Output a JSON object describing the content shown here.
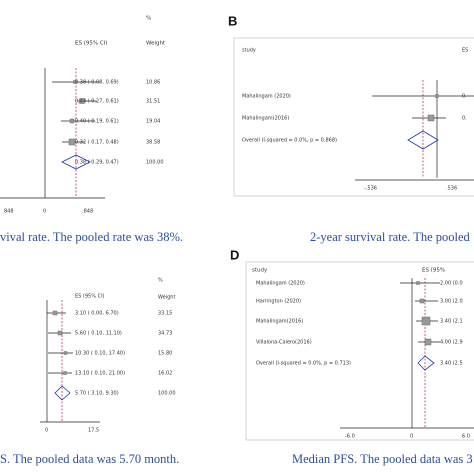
{
  "panel_a": {
    "pct": "%",
    "es_header": "ES (95% CI)",
    "weight_header": "Weight",
    "rows": [
      [
        "0.38 ( 0.08, 0.69)",
        "10.86"
      ],
      [
        "0.44 ( 0.27, 0.61)",
        "31.51"
      ],
      [
        "0.40 ( 0.19, 0.61)",
        "19.04"
      ],
      [
        "0.32 ( 0.17, 0.48)",
        "38.58"
      ],
      [
        "0.38 ( 0.29, 0.47)",
        "100.00"
      ]
    ],
    "axis": [
      "848",
      "0",
      ".848"
    ],
    "caption": "vival rate. The pooled rate was 38%."
  },
  "panel_b": {
    "label": "B",
    "study_header": "study",
    "es_header": "ES",
    "rows": [
      [
        "Mahalingam  (2020)",
        "0."
      ],
      [
        "Mahalingam(2016)",
        "0."
      ],
      [
        "Overall  (I-squared = 0.0%, p = 0.868)",
        ""
      ]
    ],
    "axis": [
      "-.536",
      ".536"
    ],
    "caption": "2-year survival rate. The pooled"
  },
  "panel_c": {
    "pct": "%",
    "es_header": "ES (95% CI)",
    "weight_header": "Weight",
    "rows": [
      [
        "3.10 ( 0.00, 6.70)",
        "33.15"
      ],
      [
        "5.60 ( 0.10, 11.10)",
        "34.73"
      ],
      [
        "10.30 ( 0.10, 17.40)",
        "15.80"
      ],
      [
        "13.10 ( 0.10, 21.00)",
        "16.02"
      ],
      [
        "5.70 ( 3.10, 9.30)",
        "100.00"
      ]
    ],
    "axis": [
      "0",
      "17.5"
    ],
    "caption": "S. The pooled data was 5.70 month."
  },
  "panel_d": {
    "label": "D",
    "study_header": "study",
    "es_header": "ES (95%",
    "rows": [
      [
        "Mahalingam  (2020)",
        "2.00 (0.0"
      ],
      [
        "Harrington  (2020)",
        "3.00 (2.0"
      ],
      [
        "Mahalingam(2016)",
        "3.40 (2.1"
      ],
      [
        "Villalona-Calero(2016)",
        "4.00 (2.9"
      ],
      [
        "Overall  (I-squared = 0.0%, p = 0.713)",
        "3.40 (2.5"
      ]
    ],
    "axis": [
      "-6.0",
      "0",
      "6.0"
    ],
    "caption": "Median PFS. The pooled data was 3"
  }
}
